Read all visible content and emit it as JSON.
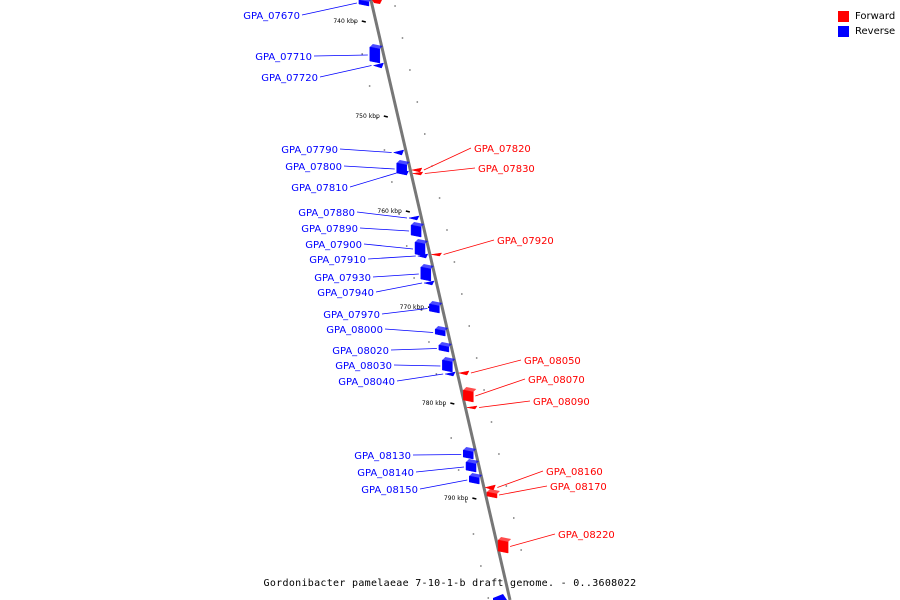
{
  "legend": {
    "forward": {
      "label": "Forward",
      "color": "#ff0000"
    },
    "reverse": {
      "label": "Reverse",
      "color": "#0000ff"
    }
  },
  "caption": "Gordonibacter pamelaeae 7-10-1-b draft genome. - 0..3608022",
  "scale_marks": [
    {
      "kbp": 740,
      "label": "740 kbp"
    },
    {
      "kbp": 750,
      "label": "750 kbp"
    },
    {
      "kbp": 760,
      "label": "760 kbp"
    },
    {
      "kbp": 770,
      "label": "770 kbp"
    },
    {
      "kbp": 780,
      "label": "780 kbp"
    },
    {
      "kbp": 790,
      "label": "790 kbp"
    }
  ],
  "genes": [
    {
      "id": "GPA_07670",
      "strand": "reverse"
    },
    {
      "id": "GPA_07710",
      "strand": "reverse"
    },
    {
      "id": "GPA_07720",
      "strand": "reverse"
    },
    {
      "id": "GPA_07790",
      "strand": "reverse"
    },
    {
      "id": "GPA_07800",
      "strand": "reverse"
    },
    {
      "id": "GPA_07810",
      "strand": "reverse"
    },
    {
      "id": "GPA_07820",
      "strand": "forward"
    },
    {
      "id": "GPA_07830",
      "strand": "forward"
    },
    {
      "id": "GPA_07880",
      "strand": "reverse"
    },
    {
      "id": "GPA_07890",
      "strand": "reverse"
    },
    {
      "id": "GPA_07900",
      "strand": "reverse"
    },
    {
      "id": "GPA_07910",
      "strand": "reverse"
    },
    {
      "id": "GPA_07920",
      "strand": "forward"
    },
    {
      "id": "GPA_07930",
      "strand": "reverse"
    },
    {
      "id": "GPA_07940",
      "strand": "reverse"
    },
    {
      "id": "GPA_07970",
      "strand": "reverse"
    },
    {
      "id": "GPA_08000",
      "strand": "reverse"
    },
    {
      "id": "GPA_08020",
      "strand": "reverse"
    },
    {
      "id": "GPA_08030",
      "strand": "reverse"
    },
    {
      "id": "GPA_08040",
      "strand": "reverse"
    },
    {
      "id": "GPA_08050",
      "strand": "forward"
    },
    {
      "id": "GPA_08070",
      "strand": "forward"
    },
    {
      "id": "GPA_08090",
      "strand": "forward"
    },
    {
      "id": "GPA_08130",
      "strand": "reverse"
    },
    {
      "id": "GPA_08140",
      "strand": "reverse"
    },
    {
      "id": "GPA_08150",
      "strand": "reverse"
    },
    {
      "id": "GPA_08160",
      "strand": "forward"
    },
    {
      "id": "GPA_08170",
      "strand": "forward"
    },
    {
      "id": "GPA_08220",
      "strand": "forward"
    }
  ]
}
